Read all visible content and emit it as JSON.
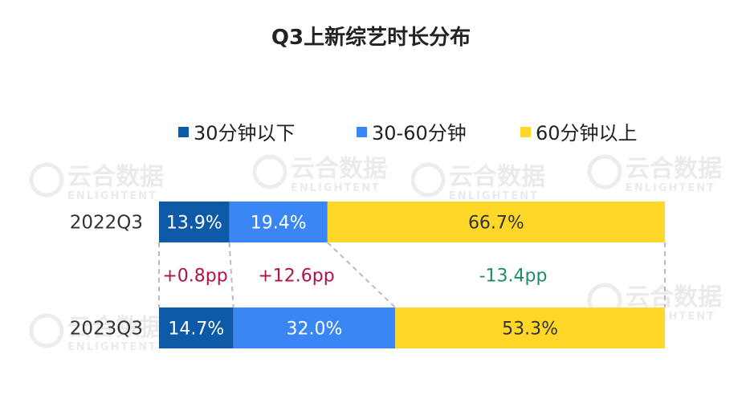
{
  "chart_data": {
    "type": "bar",
    "orientation": "horizontal",
    "stacked": "100%",
    "title": "Q3上新综艺时长分布",
    "categories": [
      "2022Q3",
      "2023Q3"
    ],
    "series": [
      {
        "name": "30分钟以下",
        "color": "#0E5AA7",
        "values": [
          13.9,
          14.7
        ],
        "labels": [
          "13.9%",
          "14.7%"
        ],
        "label_color": "#ffffff"
      },
      {
        "name": "30-60分钟",
        "color": "#3A86F5",
        "values": [
          19.4,
          32.0
        ],
        "labels": [
          "19.4%",
          "32.0%"
        ],
        "label_color": "#ffffff"
      },
      {
        "name": "60分钟以上",
        "color": "#FFD729",
        "values": [
          66.7,
          53.3
        ],
        "labels": [
          "66.7%",
          "53.3%"
        ],
        "label_color": "#333333"
      }
    ],
    "changes": [
      {
        "label": "+0.8pp",
        "color": "#B0124A"
      },
      {
        "label": "+12.6pp",
        "color": "#B0124A"
      },
      {
        "label": "-13.4pp",
        "color": "#1E8A6A"
      }
    ],
    "legend_position": "top",
    "grid": false
  },
  "watermark": {
    "brand": "云合数据",
    "sub": "ENLIGHTENT"
  }
}
